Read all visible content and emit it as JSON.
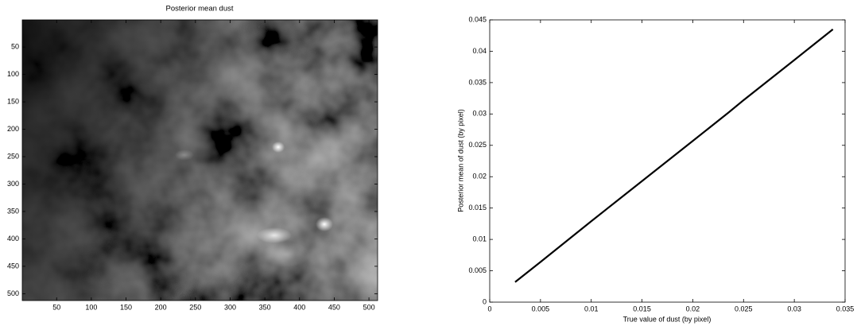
{
  "chart_data": [
    {
      "type": "image",
      "title": "Posterior mean dust",
      "xlim": [
        0.5,
        512.5
      ],
      "ylim": [
        512.5,
        0.5
      ],
      "xticks": [
        50,
        100,
        150,
        200,
        250,
        300,
        350,
        400,
        450,
        500
      ],
      "yticks": [
        50,
        100,
        150,
        200,
        250,
        300,
        350,
        400,
        450,
        500
      ]
    },
    {
      "type": "line",
      "xlabel": "True value of dust (by pixel)",
      "ylabel": "Posterior mean of dust (by pixel)",
      "x": [
        0.0025,
        0.005,
        0.01,
        0.015,
        0.02,
        0.0235,
        0.025,
        0.03,
        0.0338
      ],
      "series": [
        {
          "color": "#000000",
          "values": [
            0.0032,
            0.0064,
            0.0129,
            0.0193,
            0.0257,
            0.0302,
            0.0322,
            0.0386,
            0.0435
          ]
        }
      ],
      "xlim": [
        0,
        0.035
      ],
      "ylim": [
        0,
        0.045
      ],
      "xticks": [
        0,
        0.005,
        0.01,
        0.015,
        0.02,
        0.025,
        0.03,
        0.035
      ],
      "yticks": [
        0,
        0.005,
        0.01,
        0.015,
        0.02,
        0.025,
        0.03,
        0.035,
        0.04,
        0.045
      ]
    }
  ]
}
